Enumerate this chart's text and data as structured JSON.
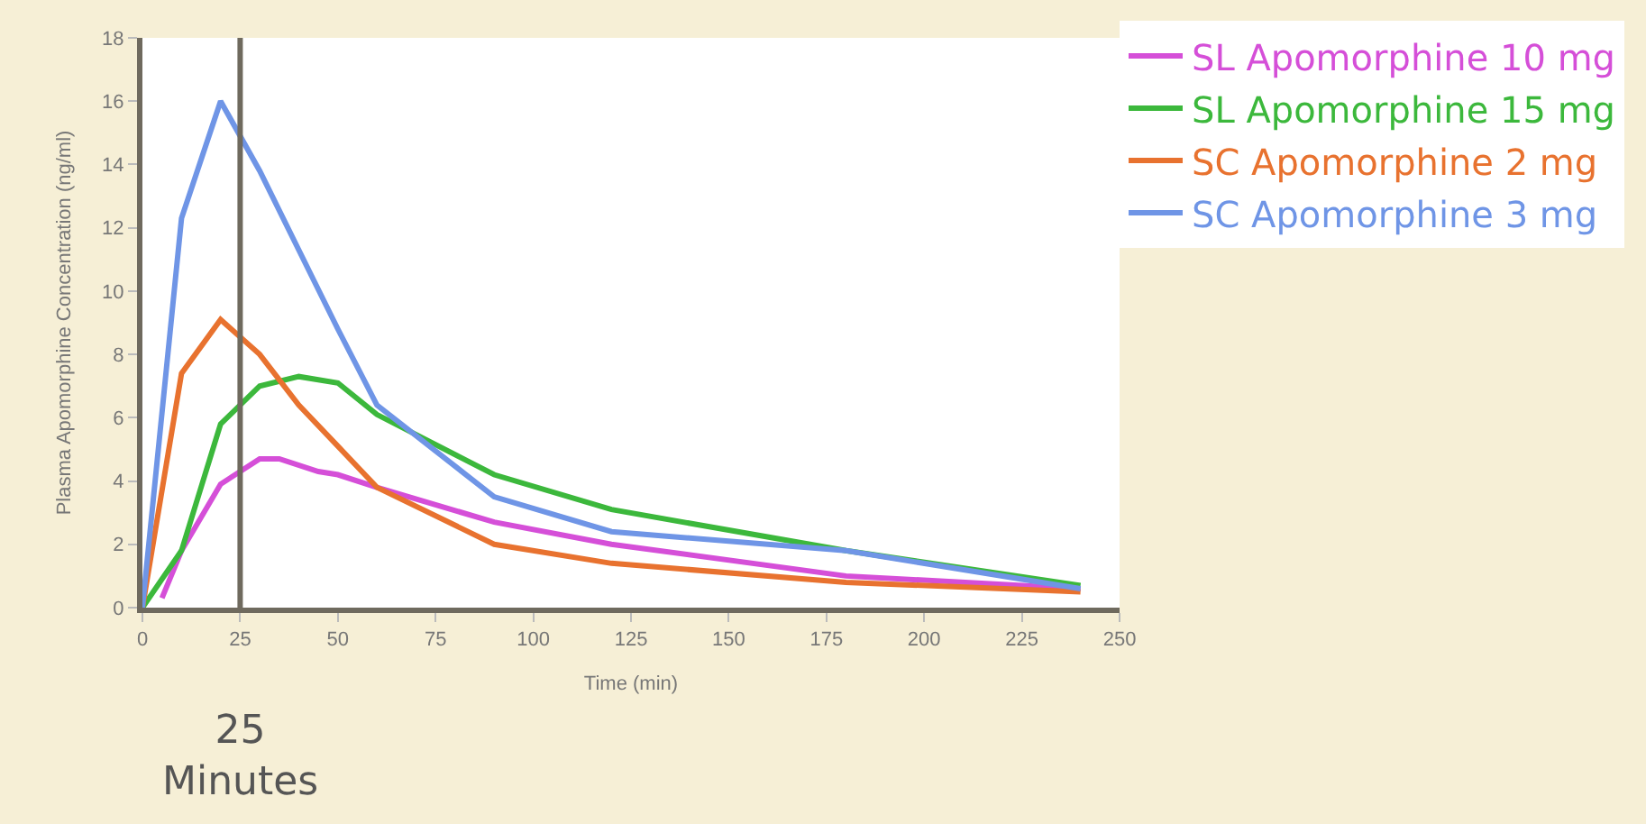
{
  "chart_data": {
    "type": "line",
    "xlabel": "Time (min)",
    "ylabel": "Plasma Apomorphine Concentration (ng/ml)",
    "xlim": [
      0,
      250
    ],
    "xticks": [
      0,
      25,
      50,
      75,
      100,
      125,
      150,
      175,
      200,
      225,
      250
    ],
    "ylim": [
      0,
      18
    ],
    "yticks": [
      0,
      2,
      4,
      6,
      8,
      10,
      12,
      14,
      16,
      18
    ],
    "legend": "top right",
    "marker": "none",
    "line_style": "solid",
    "series": [
      {
        "name": "SL Apomorphine 10 mg",
        "color": "#d54fd8",
        "x": [
          5,
          10,
          20,
          30,
          35,
          45,
          50,
          60,
          90,
          120,
          180,
          240
        ],
        "values": [
          0.3,
          1.8,
          3.9,
          4.7,
          4.7,
          4.3,
          4.2,
          3.8,
          2.7,
          2.0,
          1.0,
          0.6
        ]
      },
      {
        "name": "SL Apomorphine 15 mg",
        "color": "#3cb83c",
        "x": [
          0,
          10,
          20,
          30,
          40,
          50,
          60,
          90,
          120,
          180,
          240
        ],
        "values": [
          0,
          1.8,
          5.8,
          7.0,
          7.3,
          7.1,
          6.1,
          4.2,
          3.1,
          1.8,
          0.7
        ]
      },
      {
        "name": "SC Apomorphine 2 mg",
        "color": "#e8722f",
        "x": [
          0,
          10,
          20,
          30,
          40,
          50,
          60,
          90,
          120,
          180,
          240
        ],
        "values": [
          0,
          7.4,
          9.1,
          8.0,
          6.4,
          5.1,
          3.8,
          2.0,
          1.4,
          0.8,
          0.5
        ]
      },
      {
        "name": "SC Apomorphine 3 mg",
        "color": "#6f95e6",
        "x": [
          0,
          10,
          20,
          30,
          40,
          50,
          60,
          90,
          120,
          180,
          240
        ],
        "values": [
          0,
          12.3,
          16.0,
          13.8,
          11.3,
          8.8,
          6.4,
          3.5,
          2.4,
          1.8,
          0.6
        ]
      }
    ],
    "ref_lines": [
      {
        "axis": "x",
        "value": 25,
        "label": "25 Minutes",
        "color": "#6f6a5e"
      }
    ]
  }
}
